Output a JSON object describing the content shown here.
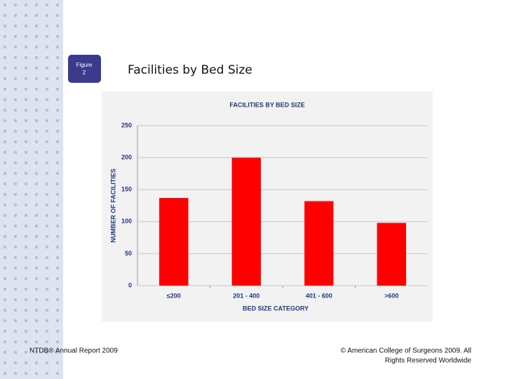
{
  "slide": {
    "badge": [
      "Figure",
      "2"
    ],
    "title": "Facilities by Bed Size",
    "footer_left": "NTDB® Annual Report 2009",
    "footer_right": [
      "© American College of Surgeons 2009.  All",
      "Rights Reserved Worldwide"
    ]
  },
  "chart_data": {
    "type": "bar",
    "title": "FACILITIES BY BED SIZE",
    "x_label": "BED SIZE CATEGORY",
    "y_label": "NUMBER OF FACILITIES",
    "categories": [
      "≤200",
      "201 - 400",
      "401 - 600",
      ">600"
    ],
    "values": [
      137,
      200,
      132,
      98
    ],
    "color": "#ff0000",
    "ylim": [
      0,
      250
    ],
    "yticks": [
      0,
      50,
      100,
      150,
      200,
      250
    ],
    "grid": true
  }
}
